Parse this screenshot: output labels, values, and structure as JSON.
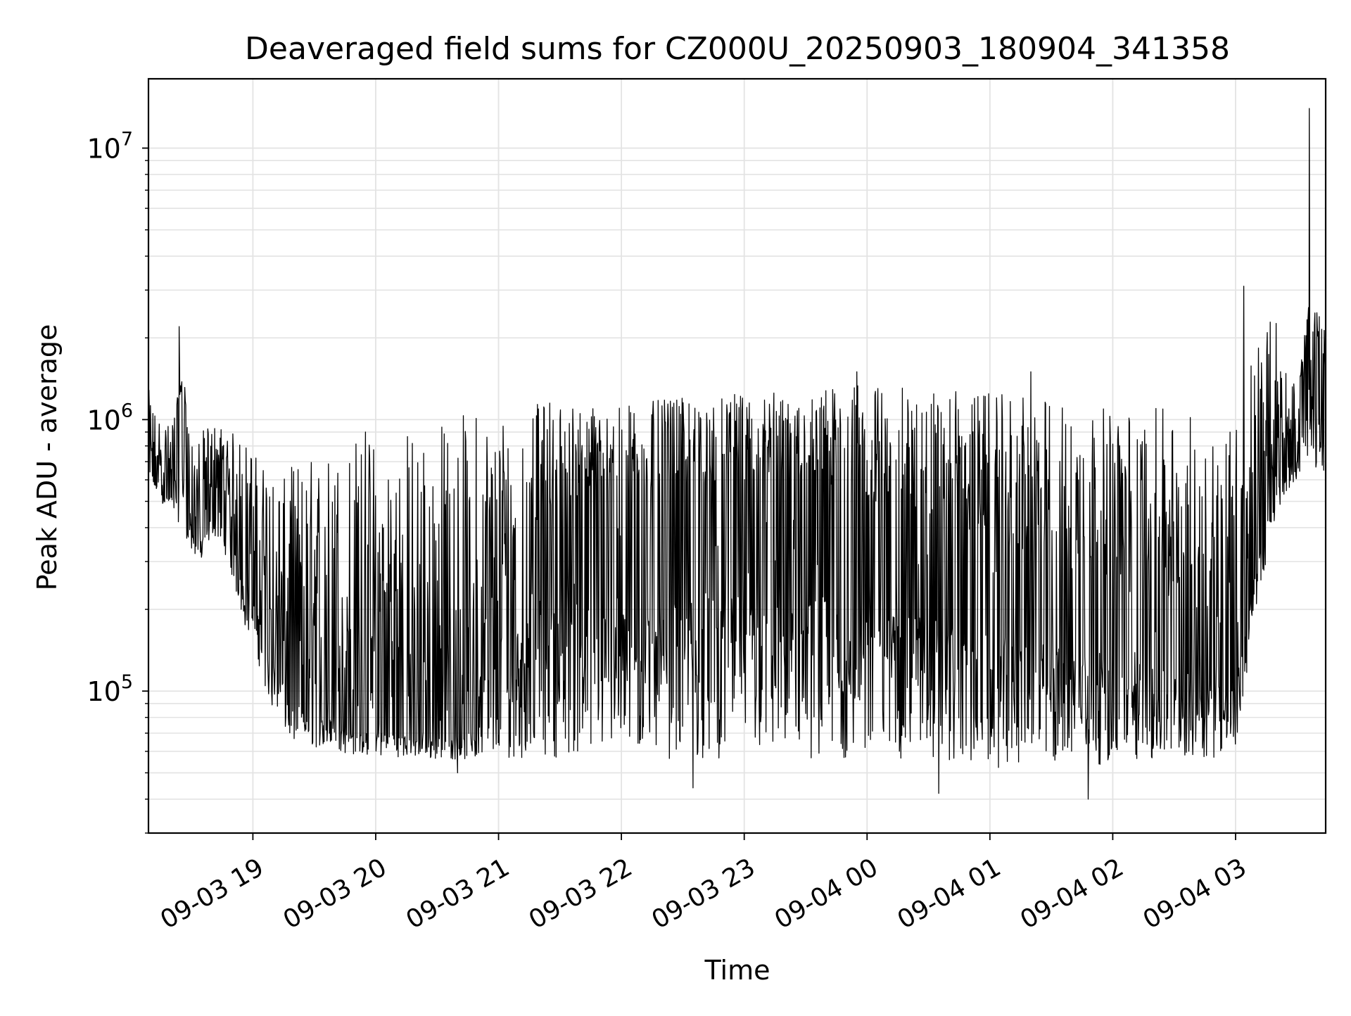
{
  "chart_data": {
    "type": "line",
    "title": "Deaveraged field sums for CZ000U_20250903_180904_341358",
    "xlabel": "Time",
    "ylabel": "Peak ADU - average",
    "yscale": "log",
    "xlim": [
      "2025-09-03 18:09",
      "2025-09-04 03:44"
    ],
    "ylim": [
      30000,
      18000000
    ],
    "grid": true,
    "legend": "none",
    "line_color": "#000000",
    "x_ticks": [
      {
        "value": "2025-09-03 19:00",
        "label": "09-03 19"
      },
      {
        "value": "2025-09-03 20:00",
        "label": "09-03 20"
      },
      {
        "value": "2025-09-03 21:00",
        "label": "09-03 21"
      },
      {
        "value": "2025-09-03 22:00",
        "label": "09-03 22"
      },
      {
        "value": "2025-09-03 23:00",
        "label": "09-03 23"
      },
      {
        "value": "2025-09-04 00:00",
        "label": "09-04 00"
      },
      {
        "value": "2025-09-04 01:00",
        "label": "09-04 01"
      },
      {
        "value": "2025-09-04 02:00",
        "label": "09-04 02"
      },
      {
        "value": "2025-09-04 03:00",
        "label": "09-04 03"
      }
    ],
    "y_ticks": [
      {
        "value": 100000,
        "base": "10",
        "exp": "5"
      },
      {
        "value": 1000000,
        "base": "10",
        "exp": "6"
      },
      {
        "value": 10000000,
        "base": "10",
        "exp": "7"
      }
    ],
    "series": [
      {
        "x": [
          "2025-09-03 18:09",
          "2025-09-03 18:15",
          "2025-09-03 18:20",
          "2025-09-03 18:26",
          "2025-09-03 18:30",
          "2025-09-03 18:35",
          "2025-09-03 18:40",
          "2025-09-03 18:45",
          "2025-09-03 18:50",
          "2025-09-03 18:55",
          "2025-09-03 19:00",
          "2025-09-03 19:05",
          "2025-09-03 19:10",
          "2025-09-03 19:15",
          "2025-09-03 19:20",
          "2025-09-03 19:30",
          "2025-09-03 19:40",
          "2025-09-03 19:50",
          "2025-09-03 20:00",
          "2025-09-03 20:15",
          "2025-09-03 20:30",
          "2025-09-03 20:45",
          "2025-09-03 21:00",
          "2025-09-03 21:15",
          "2025-09-03 21:30",
          "2025-09-03 22:00",
          "2025-09-03 22:30",
          "2025-09-03 23:00",
          "2025-09-03 23:30",
          "2025-09-04 00:00",
          "2025-09-04 00:30",
          "2025-09-04 01:00",
          "2025-09-04 01:30",
          "2025-09-04 02:00",
          "2025-09-04 02:30",
          "2025-09-04 02:50",
          "2025-09-04 03:00",
          "2025-09-04 03:10",
          "2025-09-04 03:20",
          "2025-09-04 03:25",
          "2025-09-04 03:30",
          "2025-09-04 03:36",
          "2025-09-04 03:40",
          "2025-09-04 03:44"
        ],
        "y": [
          700000,
          650000,
          600000,
          1500000,
          450000,
          400000,
          500000,
          550000,
          450000,
          350000,
          300000,
          250000,
          180000,
          150000,
          120000,
          100000,
          95000,
          85000,
          80000,
          78000,
          77000,
          80000,
          120000,
          400000,
          500000,
          550000,
          550000,
          600000,
          600000,
          500000,
          450000,
          350000,
          300000,
          250000,
          200000,
          180000,
          150000,
          400000,
          650000,
          850000,
          800000,
          2000000,
          1700000,
          1500000
        ],
        "y_low": [
          600000,
          500000,
          450000,
          400000,
          320000,
          300000,
          380000,
          350000,
          260000,
          180000,
          150000,
          110000,
          80000,
          70000,
          65000,
          62000,
          60000,
          58000,
          58000,
          57000,
          56000,
          56000,
          56000,
          57000,
          57000,
          57000,
          56000,
          56000,
          56000,
          56000,
          55000,
          52000,
          52000,
          54000,
          56000,
          57000,
          60000,
          200000,
          450000,
          550000,
          600000,
          700000,
          650000,
          650000
        ],
        "y_high": [
          1300000,
          1000000,
          950000,
          1500000,
          800000,
          900000,
          1000000,
          950000,
          900000,
          850000,
          800000,
          700000,
          650000,
          600000,
          700000,
          750000,
          800000,
          900000,
          900000,
          950000,
          1000000,
          1100000,
          1150000,
          1150000,
          1150000,
          1150000,
          1200000,
          1250000,
          1300000,
          1350000,
          1300000,
          1250000,
          1200000,
          1100000,
          1100000,
          1000000,
          1050000,
          2000000,
          2500000,
          1500000,
          1400000,
          2700000,
          2500000,
          2200000
        ],
        "spikes": [
          {
            "x": "2025-09-03 18:24",
            "y": 2200000
          },
          {
            "x": "2025-09-03 19:55",
            "y": 900000
          },
          {
            "x": "2025-09-03 20:40",
            "y": 50000
          },
          {
            "x": "2025-09-03 21:25",
            "y": 1150000
          },
          {
            "x": "2025-09-03 22:35",
            "y": 44000
          },
          {
            "x": "2025-09-03 23:55",
            "y": 1500000
          },
          {
            "x": "2025-09-04 00:35",
            "y": 42000
          },
          {
            "x": "2025-09-04 01:20",
            "y": 1500000
          },
          {
            "x": "2025-09-04 01:48",
            "y": 40000
          },
          {
            "x": "2025-09-04 03:04",
            "y": 3100000
          },
          {
            "x": "2025-09-04 03:08",
            "y": 190000
          },
          {
            "x": "2025-09-04 03:36",
            "y": 14000000
          }
        ]
      }
    ]
  }
}
